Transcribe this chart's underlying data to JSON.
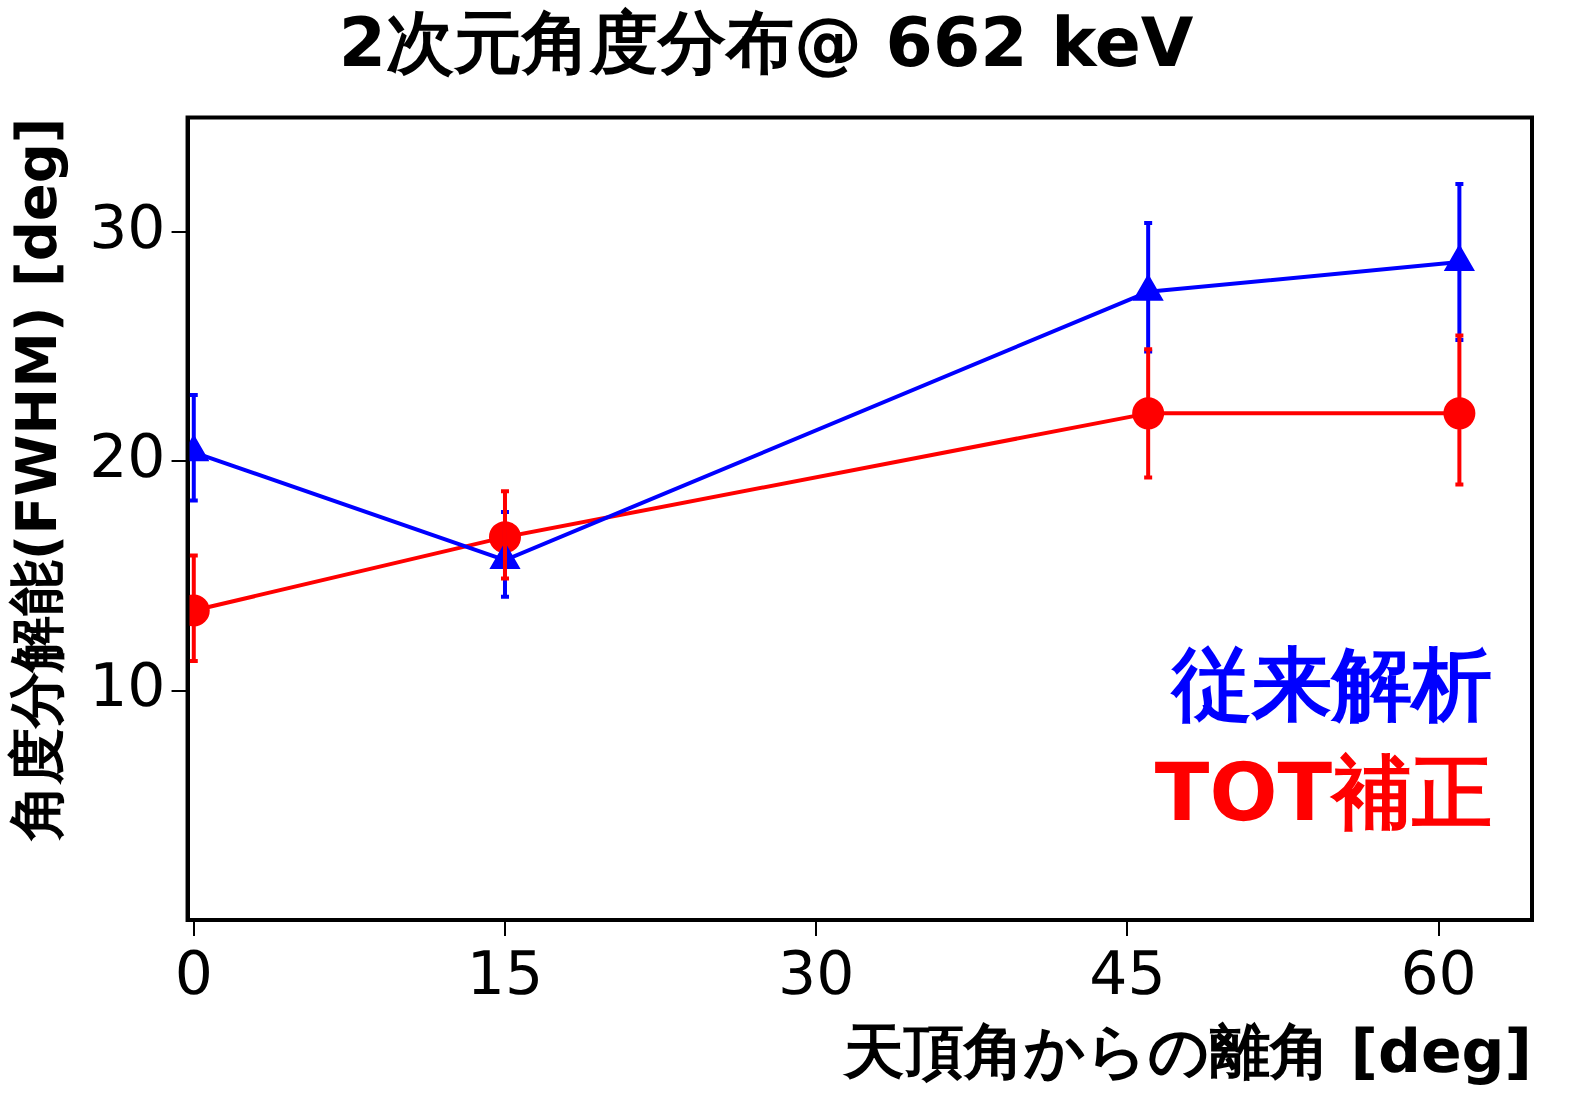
{
  "chart_data": {
    "type": "line",
    "title": "2次元角度分布@ 662 keV",
    "xlabel": "天頂角からの離角 [deg]",
    "ylabel": "角度分解能(FWHM) [deg]",
    "xlim": [
      -0.3,
      64.5
    ],
    "xticks": [
      0,
      15,
      30,
      45,
      60
    ],
    "ylim": [
      0,
      35
    ],
    "yticks": [
      10,
      20,
      30
    ],
    "grid": false,
    "legend": "bottom right",
    "series": [
      {
        "name": "従来解析",
        "color": "#0000ff",
        "marker": "triangle",
        "x": [
          0,
          15,
          46,
          61
        ],
        "values": [
          20.4,
          15.7,
          27.4,
          28.7
        ],
        "errors": [
          [
            18.3,
            22.9
          ],
          [
            14.1,
            17.8
          ],
          [
            24.8,
            30.4
          ],
          [
            25.3,
            32.1
          ]
        ]
      },
      {
        "name": "TOT補正",
        "color": "#ff0000",
        "marker": "circle",
        "x": [
          0,
          15,
          46,
          61
        ],
        "values": [
          13.5,
          16.7,
          22.1,
          22.1
        ],
        "errors": [
          [
            11.3,
            15.9
          ],
          [
            14.9,
            18.7
          ],
          [
            19.3,
            24.9
          ],
          [
            19.0,
            25.5
          ]
        ]
      }
    ]
  }
}
